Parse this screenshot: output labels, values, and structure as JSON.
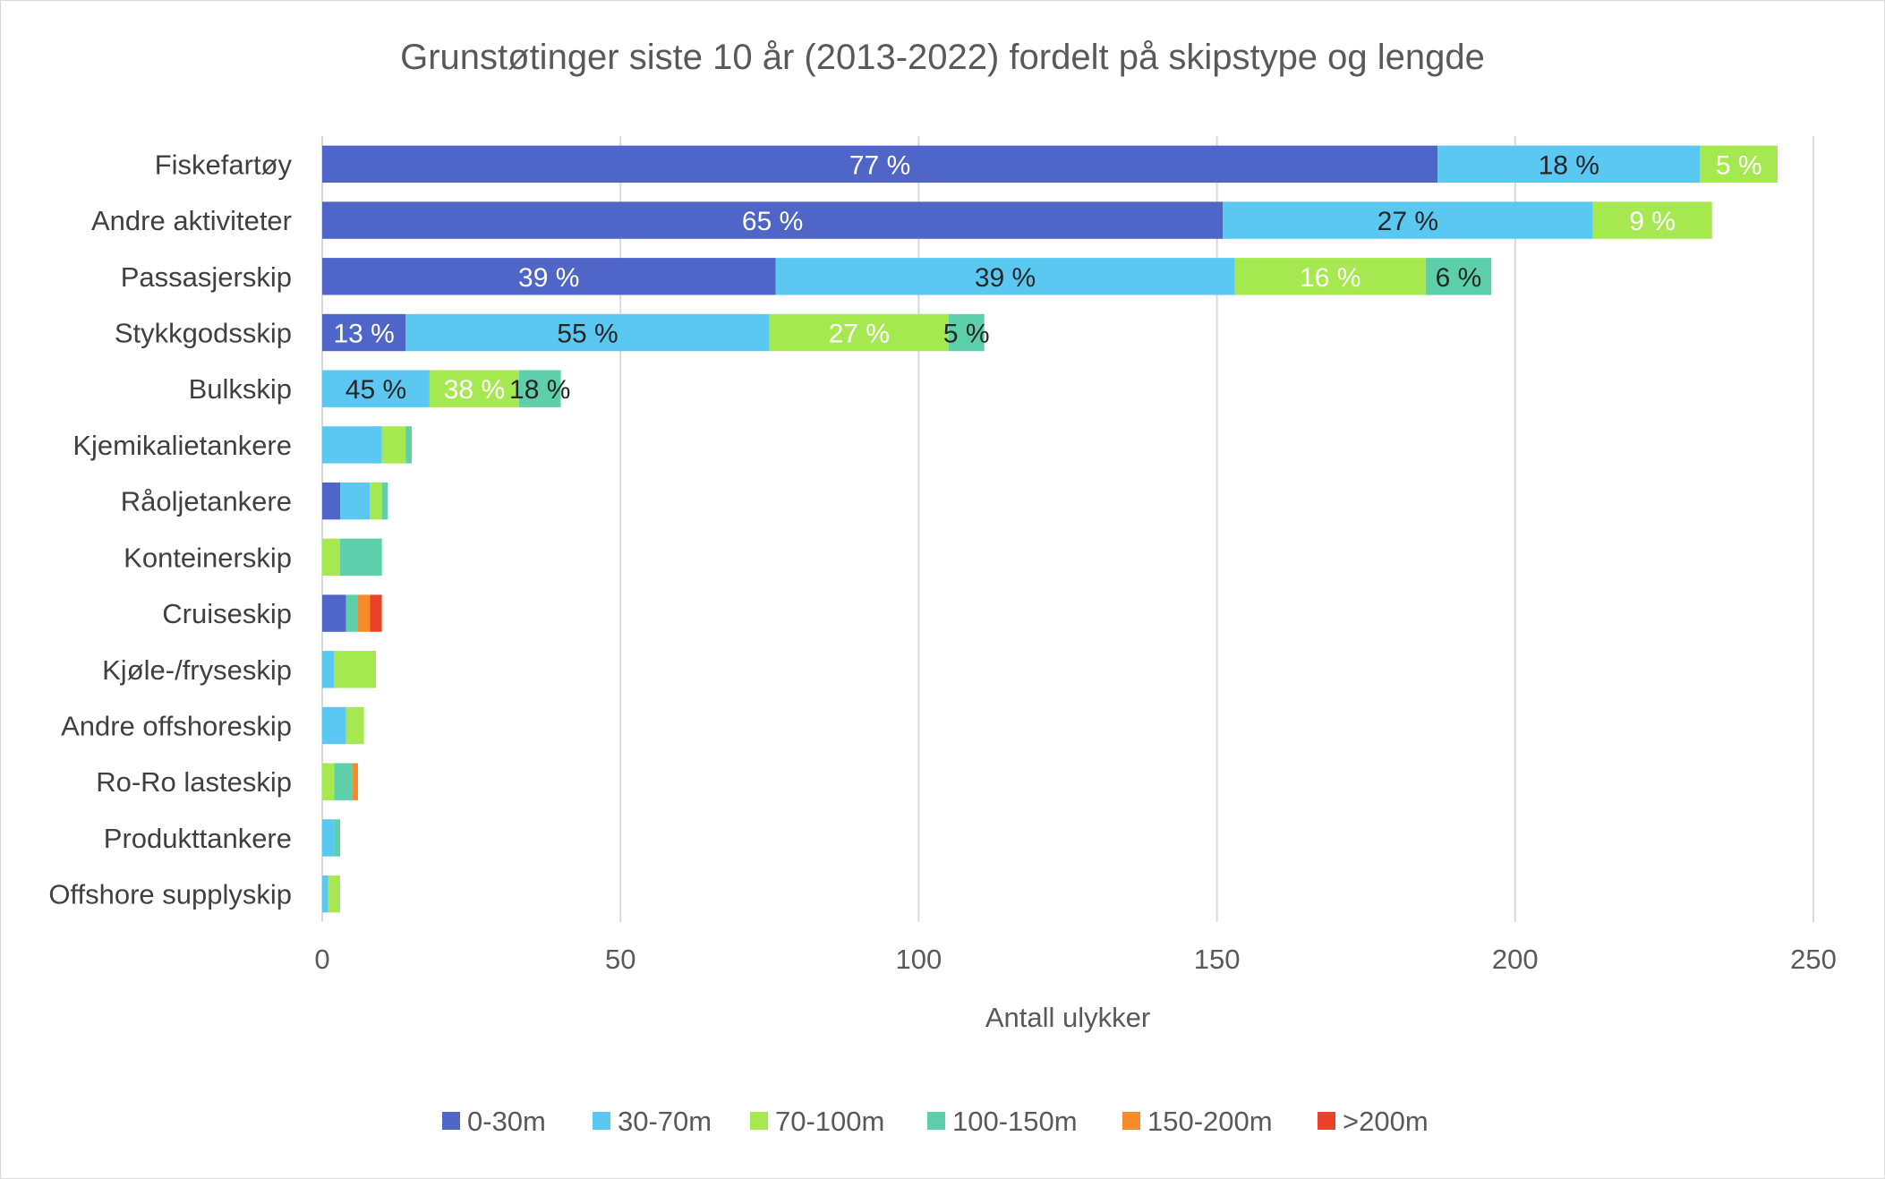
{
  "chart_data": {
    "type": "bar",
    "orientation": "horizontal",
    "stacked": true,
    "title": "Grunstøtinger siste 10 år (2013-2022) fordelt på skipstype og lengde",
    "xlabel": "Antall ulykker",
    "ylabel": "",
    "xlim": [
      0,
      250
    ],
    "xticks": [
      "0",
      "50",
      "100",
      "150",
      "200",
      "250"
    ],
    "grid": "vertical",
    "legend_position": "bottom",
    "categories": [
      "Fiskefartøy",
      "Andre aktiviteter",
      "Passasjerskip",
      "Stykkgodsskip",
      "Bulkskip",
      "Kjemikalietankere",
      "Råoljetankere",
      "Konteinerskip",
      "Cruiseskip",
      "Kjøle-/fryseskip",
      "Andre offshoreskip",
      "Ro-Ro lasteskip",
      "Produkttankere",
      "Offshore supplyskip"
    ],
    "series": [
      {
        "name": "0-30m",
        "color": "#4f65c8",
        "values": [
          187,
          151,
          76,
          14,
          0,
          0,
          3,
          0,
          4,
          0,
          0,
          0,
          0,
          0
        ],
        "labels": [
          "77 %",
          "65 %",
          "39 %",
          "13 %",
          "",
          "",
          "",
          "",
          "",
          "",
          "",
          "",
          "",
          ""
        ]
      },
      {
        "name": "30-70m",
        "color": "#5bc8f2",
        "values": [
          44,
          62,
          77,
          61,
          18,
          10,
          5,
          0,
          0,
          2,
          4,
          0,
          2,
          1
        ],
        "labels": [
          "18 %",
          "27 %",
          "39 %",
          "55 %",
          "45 %",
          "",
          "",
          "",
          "",
          "",
          "",
          "",
          "",
          ""
        ]
      },
      {
        "name": "70-100m",
        "color": "#a6e84f",
        "values": [
          13,
          20,
          32,
          30,
          15,
          4,
          2,
          3,
          0,
          7,
          3,
          2,
          0,
          2
        ],
        "labels": [
          "5 %",
          "9 %",
          "16 %",
          "27 %",
          "38 %",
          "",
          "",
          "",
          "",
          "",
          "",
          "",
          "",
          ""
        ]
      },
      {
        "name": "100-150m",
        "color": "#5dcfaa",
        "values": [
          0,
          0,
          11,
          6,
          7,
          1,
          1,
          7,
          2,
          0,
          0,
          3,
          1,
          0
        ],
        "labels": [
          "",
          "",
          "6 %",
          "5 %",
          "18 %",
          "",
          "",
          "",
          "",
          "",
          "",
          "",
          "",
          ""
        ]
      },
      {
        "name": "150-200m",
        "color": "#f78a2a",
        "values": [
          0,
          0,
          0,
          0,
          0,
          0,
          0,
          0,
          2,
          0,
          0,
          1,
          0,
          0
        ],
        "labels": [
          "",
          "",
          "",
          "",
          "",
          "",
          "",
          "",
          "",
          "",
          "",
          "",
          "",
          ""
        ]
      },
      {
        "name": ">200m",
        "color": "#e8432a",
        "values": [
          0,
          0,
          0,
          0,
          0,
          0,
          0,
          0,
          2,
          0,
          0,
          0,
          0,
          0
        ],
        "labels": [
          "",
          "",
          "",
          "",
          "",
          "",
          "",
          "",
          "",
          "",
          "",
          "",
          "",
          ""
        ]
      }
    ]
  }
}
